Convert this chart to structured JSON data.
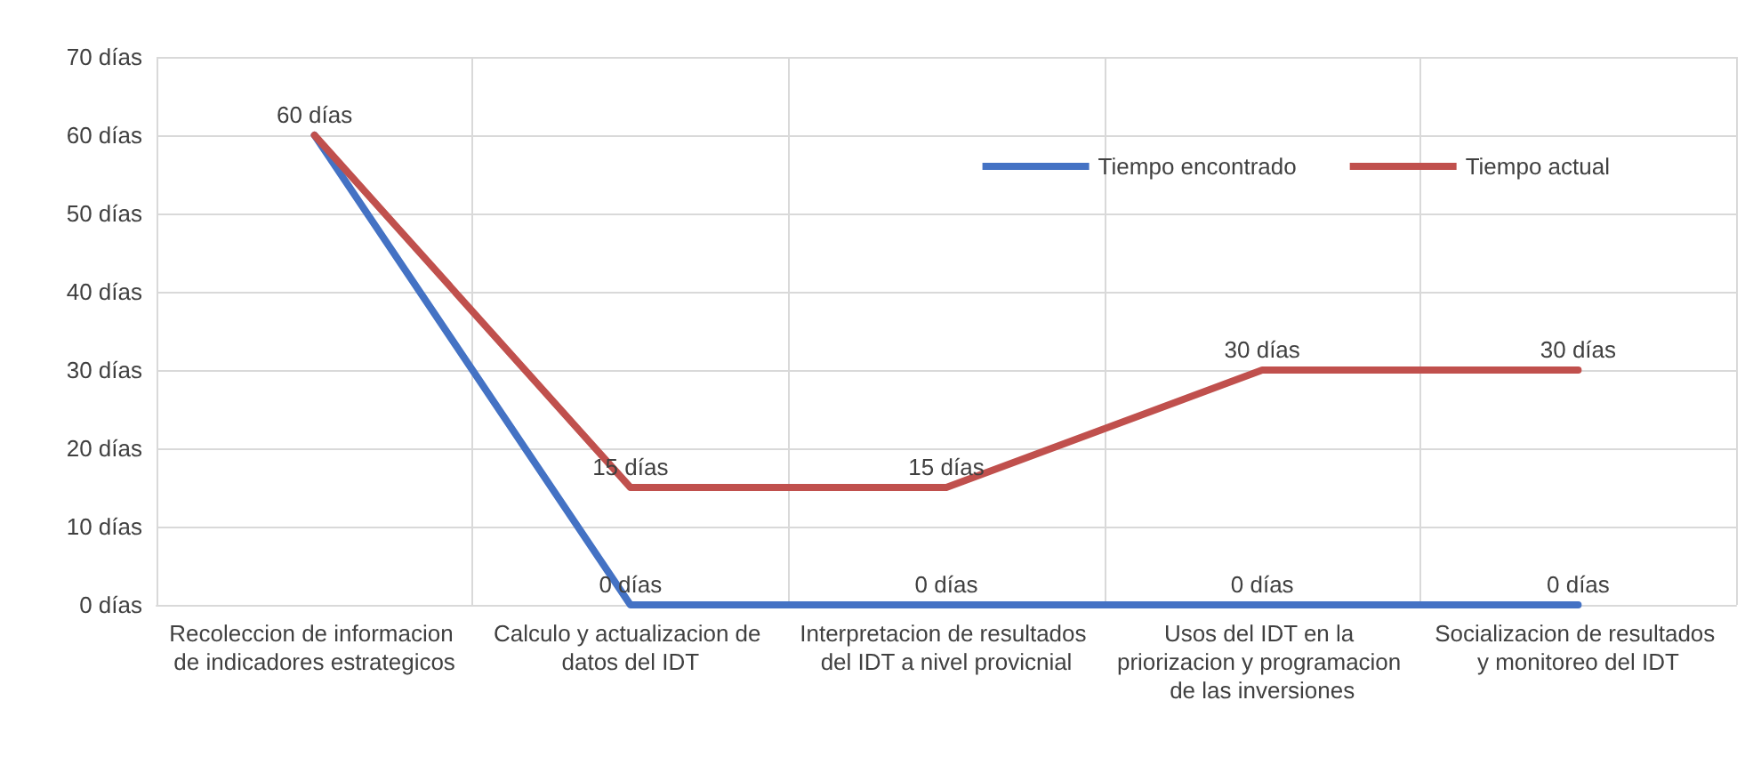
{
  "chart_data": {
    "type": "line",
    "categories": [
      "Recoleccion de informacion de indicadores estrategicos",
      "Calculo y actualizacion de datos del IDT",
      "Interpretacion de resultados del IDT a nivel provicnial",
      "Usos del IDT en la priorizacion y programacion de las inversiones",
      "Socializacion de resultados y monitoreo del IDT"
    ],
    "series": [
      {
        "name": "Tiempo encontrado",
        "color": "#4472c4",
        "values": [
          60,
          0,
          0,
          0,
          0
        ],
        "value_labels": [
          null,
          "0 días",
          "0 días",
          "0 días",
          "0 días"
        ]
      },
      {
        "name": "Tiempo actual",
        "color": "#c0504d",
        "values": [
          60,
          15,
          15,
          30,
          30
        ],
        "value_labels": [
          "60 días",
          "15 días",
          "15 días",
          "30 días",
          "30 días"
        ]
      }
    ],
    "ylim": [
      0,
      70
    ],
    "yticks": [
      {
        "value": 0,
        "label": "0 días"
      },
      {
        "value": 10,
        "label": "10 días"
      },
      {
        "value": 20,
        "label": "20 días"
      },
      {
        "value": 30,
        "label": "30 días"
      },
      {
        "value": 40,
        "label": "40 días"
      },
      {
        "value": 50,
        "label": "50 días"
      },
      {
        "value": 60,
        "label": "60 días"
      },
      {
        "value": 70,
        "label": "70 días"
      }
    ],
    "grid": true,
    "legend": "top right",
    "marker": "none",
    "line_style": "solid"
  }
}
